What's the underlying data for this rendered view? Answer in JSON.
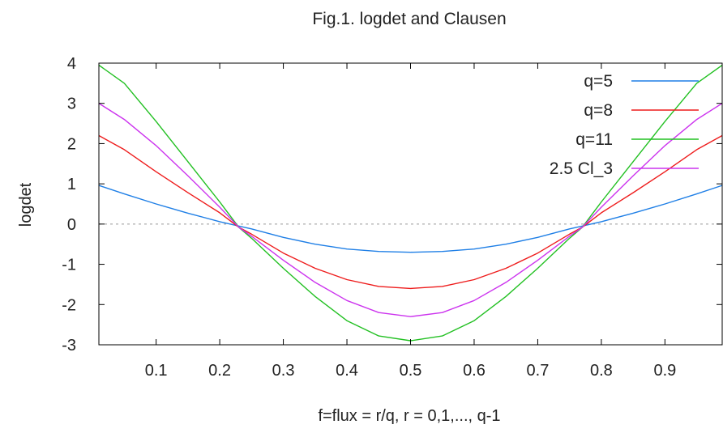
{
  "chart_data": {
    "type": "line",
    "title": "Fig.1. logdet and Clausen",
    "xlabel": "f=flux = r/q,   r = 0,1,..., q-1",
    "ylabel": "logdet",
    "xlim": [
      0.01,
      0.99
    ],
    "ylim": [
      -3,
      4
    ],
    "x_ticks": [
      "0.1",
      "0.2",
      "0.3",
      "0.4",
      "0.5",
      "0.6",
      "0.7",
      "0.8",
      "0.9"
    ],
    "y_ticks": [
      "4",
      "3",
      "2",
      "1",
      "0",
      "-1",
      "-2",
      "-3"
    ],
    "zero_line": true,
    "legend_position": "top-right",
    "x": [
      0.01,
      0.05,
      0.1,
      0.15,
      0.2,
      0.23,
      0.25,
      0.3,
      0.35,
      0.4,
      0.45,
      0.5,
      0.55,
      0.6,
      0.65,
      0.7,
      0.75,
      0.77,
      0.8,
      0.85,
      0.9,
      0.95,
      0.99
    ],
    "series": [
      {
        "name": "q=5",
        "color": "#1f7fe6",
        "values": [
          0.96,
          0.75,
          0.5,
          0.27,
          0.06,
          -0.05,
          -0.12,
          -0.33,
          -0.5,
          -0.62,
          -0.68,
          -0.7,
          -0.68,
          -0.62,
          -0.5,
          -0.33,
          -0.12,
          -0.05,
          0.06,
          0.27,
          0.5,
          0.75,
          0.96
        ]
      },
      {
        "name": "q=8",
        "color": "#ee1c1c",
        "values": [
          2.2,
          1.85,
          1.3,
          0.78,
          0.28,
          -0.08,
          -0.25,
          -0.72,
          -1.1,
          -1.38,
          -1.55,
          -1.6,
          -1.55,
          -1.38,
          -1.1,
          -0.72,
          -0.25,
          -0.08,
          0.28,
          0.78,
          1.3,
          1.85,
          2.2
        ]
      },
      {
        "name": "q=11",
        "color": "#22c022",
        "values": [
          3.95,
          3.5,
          2.55,
          1.55,
          0.55,
          -0.08,
          -0.35,
          -1.1,
          -1.8,
          -2.4,
          -2.78,
          -2.9,
          -2.78,
          -2.4,
          -1.8,
          -1.1,
          -0.35,
          -0.08,
          0.55,
          1.55,
          2.55,
          3.5,
          3.95
        ]
      },
      {
        "name": "2.5 Cl_3",
        "color": "#cc33ee",
        "values": [
          3.0,
          2.6,
          1.95,
          1.2,
          0.42,
          -0.08,
          -0.3,
          -0.9,
          -1.45,
          -1.9,
          -2.2,
          -2.3,
          -2.2,
          -1.9,
          -1.45,
          -0.9,
          -0.3,
          -0.08,
          0.42,
          1.2,
          1.95,
          2.6,
          3.0
        ]
      }
    ]
  }
}
